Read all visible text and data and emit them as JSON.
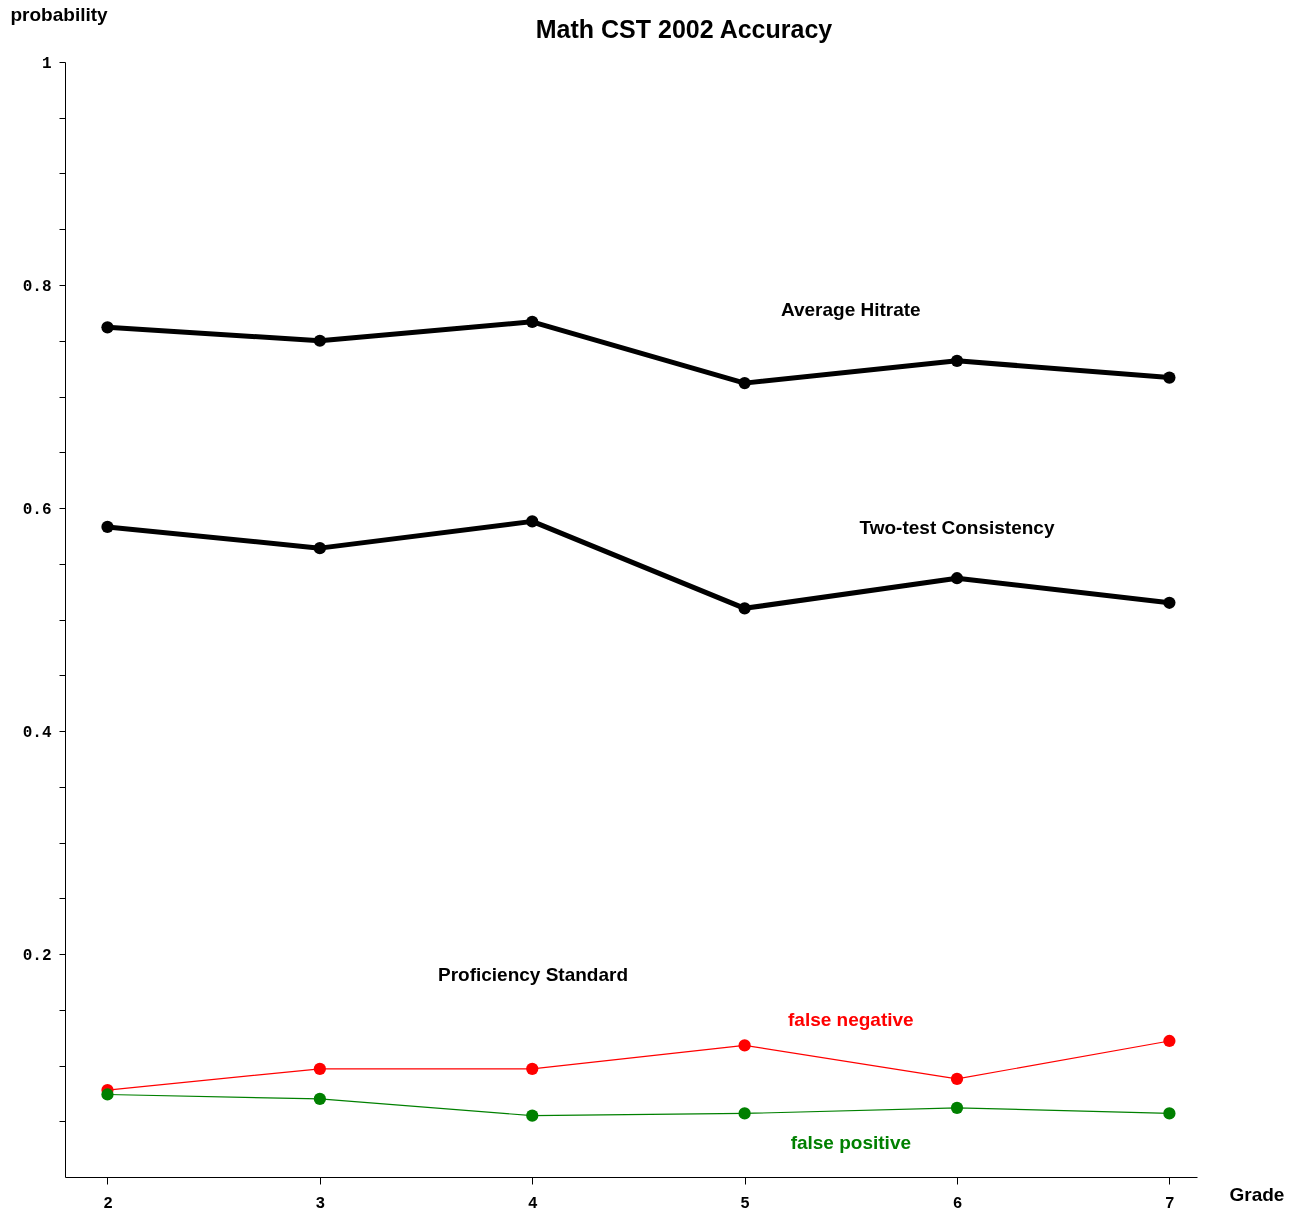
{
  "chart_data": {
    "type": "line",
    "title": "Math  CST  2002  Accuracy",
    "xlabel": "Grade",
    "ylabel": "probability",
    "x": [
      2,
      3,
      4,
      5,
      6,
      7
    ],
    "series": [
      {
        "name": "Average  Hitrate",
        "color": "#000000",
        "values": [
          0.762,
          0.75,
          0.767,
          0.712,
          0.732,
          0.717
        ]
      },
      {
        "name": "Two-test Consistency",
        "color": "#000000",
        "values": [
          0.583,
          0.564,
          0.588,
          0.51,
          0.537,
          0.515
        ]
      },
      {
        "name": "false negative",
        "color": "#ff0000",
        "values": [
          0.078,
          0.097,
          0.097,
          0.118,
          0.088,
          0.122
        ]
      },
      {
        "name": "false positive",
        "color": "#008000",
        "values": [
          0.074,
          0.07,
          0.055,
          0.057,
          0.062,
          0.057
        ]
      }
    ],
    "annotations": [
      "Proficiency   Standard"
    ],
    "xlim": [
      1.8,
      7.13
    ],
    "xticks": [
      2,
      3,
      4,
      5,
      6,
      7
    ],
    "ylim": [
      0,
      1
    ],
    "yticks": [
      {
        "value": 0.05,
        "label": null
      },
      {
        "value": 0.1,
        "label": null
      },
      {
        "value": 0.15,
        "label": null
      },
      0.2,
      {
        "value": 0.25,
        "label": null
      },
      {
        "value": 0.3,
        "label": null
      },
      {
        "value": 0.35,
        "label": null
      },
      0.4,
      {
        "value": 0.45,
        "label": null
      },
      {
        "value": 0.5,
        "label": null
      },
      {
        "value": 0.55,
        "label": null
      },
      0.6,
      {
        "value": 0.65,
        "label": null
      },
      {
        "value": 0.7,
        "label": null
      },
      {
        "value": 0.75,
        "label": null
      },
      0.8,
      {
        "value": 0.85,
        "label": null
      },
      {
        "value": 0.9,
        "label": null
      },
      {
        "value": 0.95,
        "label": null
      },
      1
    ],
    "marker": "circle"
  }
}
